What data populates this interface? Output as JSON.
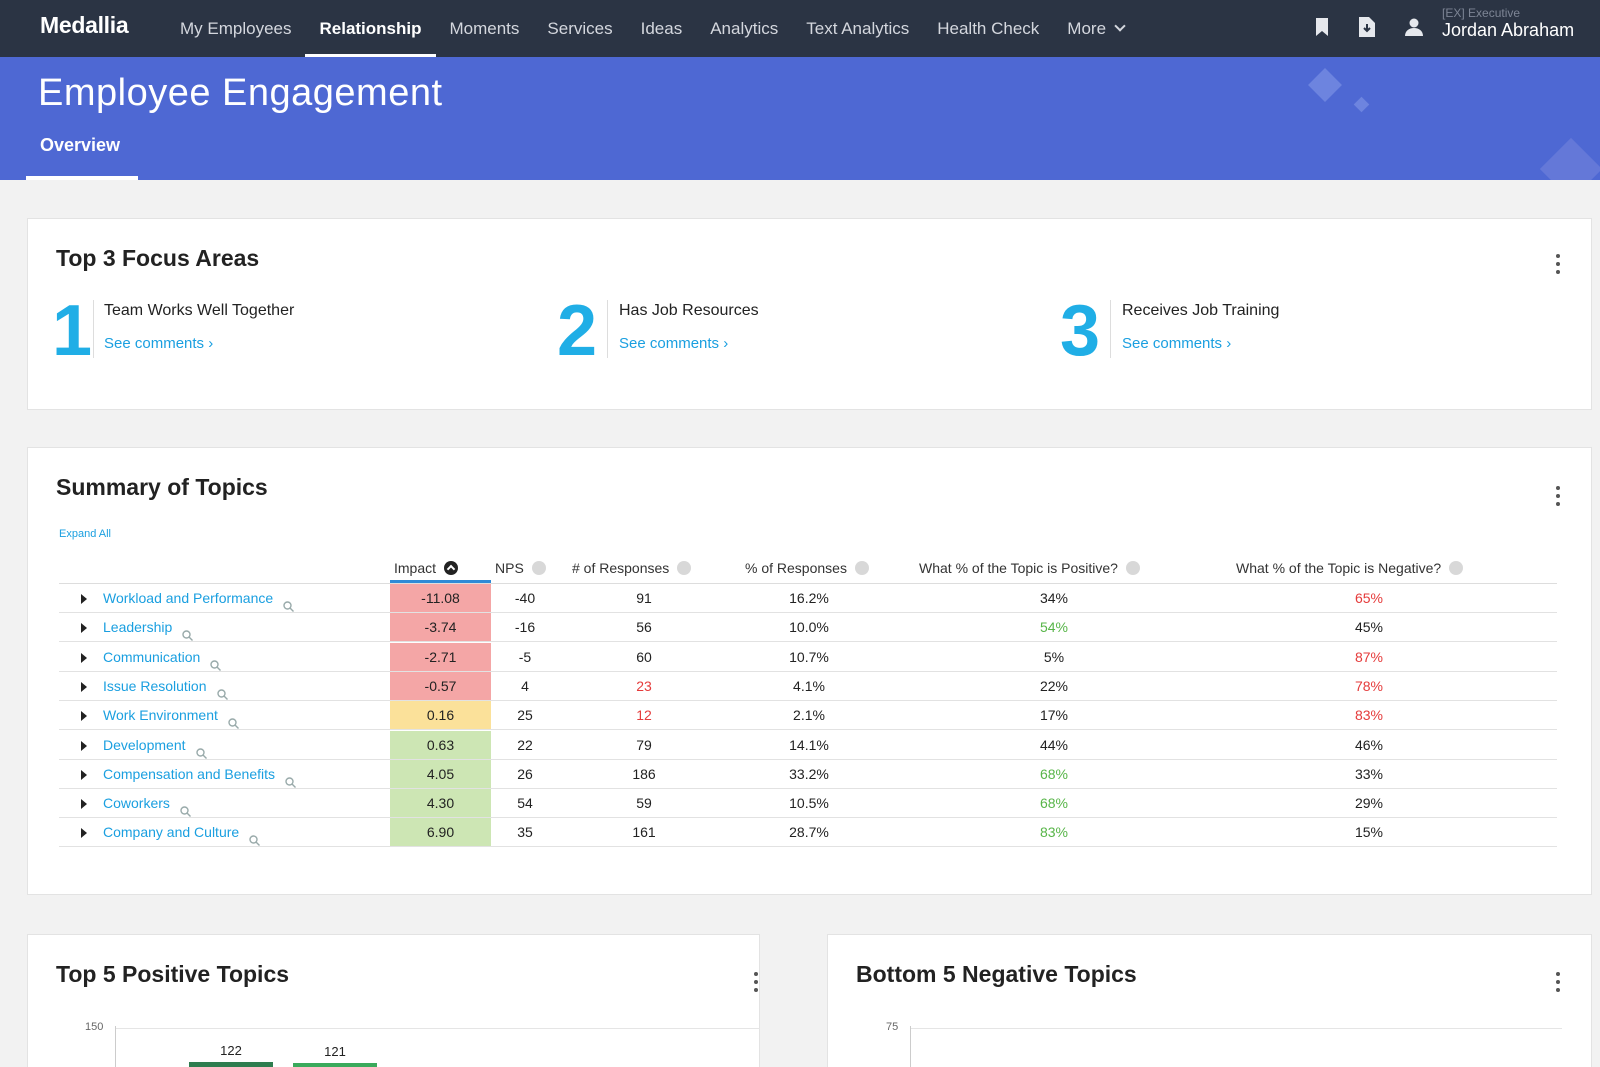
{
  "nav": {
    "logo": "Medallia",
    "items": [
      {
        "label": "My Employees",
        "active": false
      },
      {
        "label": "Relationship",
        "active": true
      },
      {
        "label": "Moments",
        "active": false
      },
      {
        "label": "Services",
        "active": false
      },
      {
        "label": "Ideas",
        "active": false
      },
      {
        "label": "Analytics",
        "active": false
      },
      {
        "label": "Text Analytics",
        "active": false
      },
      {
        "label": "Health Check",
        "active": false
      },
      {
        "label": "More",
        "active": false
      }
    ],
    "user_role": "[EX] Executive",
    "user_name": "Jordan Abraham",
    "icons": [
      "bookmark-icon",
      "export-icon",
      "user-icon"
    ]
  },
  "banner": {
    "title": "Employee Engagement",
    "tab": "Overview"
  },
  "focus": {
    "title": "Top 3 Focus Areas",
    "items": [
      {
        "num": "1",
        "label": "Team Works Well Together",
        "link": "See comments ›"
      },
      {
        "num": "2",
        "label": "Has Job Resources",
        "link": "See comments ›"
      },
      {
        "num": "3",
        "label": "Receives Job Training",
        "link": "See comments ›"
      }
    ]
  },
  "summary": {
    "title": "Summary of Topics",
    "expand_all": "Expand All",
    "columns": [
      "Impact",
      "NPS",
      "# of Responses",
      "% of Responses",
      "What % of the Topic is Positive?",
      "What % of the Topic is Negative?"
    ],
    "rows": [
      {
        "topic": "Workload and Performance",
        "impact": "-11.08",
        "impact_color": "#f4a6a6",
        "nps": "-40",
        "responses": "91",
        "responses_flag": "",
        "pct": "16.2%",
        "pos": "34%",
        "pos_flag": "",
        "neg": "65%",
        "neg_flag": "red"
      },
      {
        "topic": "Leadership",
        "impact": "-3.74",
        "impact_color": "#f4a6a6",
        "nps": "-16",
        "responses": "56",
        "responses_flag": "",
        "pct": "10.0%",
        "pos": "54%",
        "pos_flag": "green",
        "neg": "45%",
        "neg_flag": ""
      },
      {
        "topic": "Communication",
        "impact": "-2.71",
        "impact_color": "#f4a6a6",
        "nps": "-5",
        "responses": "60",
        "responses_flag": "",
        "pct": "10.7%",
        "pos": "5%",
        "pos_flag": "",
        "neg": "87%",
        "neg_flag": "red"
      },
      {
        "topic": "Issue Resolution",
        "impact": "-0.57",
        "impact_color": "#f4a6a6",
        "nps": "4",
        "responses": "23",
        "responses_flag": "red",
        "pct": "4.1%",
        "pos": "22%",
        "pos_flag": "",
        "neg": "78%",
        "neg_flag": "red"
      },
      {
        "topic": "Work Environment",
        "impact": "0.16",
        "impact_color": "#fbe19a",
        "nps": "25",
        "responses": "12",
        "responses_flag": "red",
        "pct": "2.1%",
        "pos": "17%",
        "pos_flag": "",
        "neg": "83%",
        "neg_flag": "red"
      },
      {
        "topic": "Development",
        "impact": "0.63",
        "impact_color": "#cde6b4",
        "nps": "22",
        "responses": "79",
        "responses_flag": "",
        "pct": "14.1%",
        "pos": "44%",
        "pos_flag": "",
        "neg": "46%",
        "neg_flag": ""
      },
      {
        "topic": "Compensation and Benefits",
        "impact": "4.05",
        "impact_color": "#cde6b4",
        "nps": "26",
        "responses": "186",
        "responses_flag": "",
        "pct": "33.2%",
        "pos": "68%",
        "pos_flag": "green",
        "neg": "33%",
        "neg_flag": ""
      },
      {
        "topic": "Coworkers",
        "impact": "4.30",
        "impact_color": "#cde6b4",
        "nps": "54",
        "responses": "59",
        "responses_flag": "",
        "pct": "10.5%",
        "pos": "68%",
        "pos_flag": "green",
        "neg": "29%",
        "neg_flag": ""
      },
      {
        "topic": "Company and Culture",
        "impact": "6.90",
        "impact_color": "#cde6b4",
        "nps": "35",
        "responses": "161",
        "responses_flag": "",
        "pct": "28.7%",
        "pos": "83%",
        "pos_flag": "green",
        "neg": "15%",
        "neg_flag": ""
      }
    ]
  },
  "positive": {
    "title": "Top 5 Positive Topics",
    "axis_max": "150"
  },
  "negative": {
    "title": "Bottom 5 Negative Topics",
    "axis_max": "75"
  },
  "chart_data": [
    {
      "type": "bar",
      "title": "Top 5 Positive Topics",
      "ylim": [
        0,
        150
      ],
      "values": [
        122,
        121
      ],
      "value_labels": [
        "122",
        "121"
      ],
      "colors": [
        "#2e7d4f",
        "#3aaa5c"
      ]
    },
    {
      "type": "bar",
      "title": "Bottom 5 Negative Topics",
      "ylim": [
        0,
        75
      ],
      "values": []
    }
  ],
  "colors": {
    "nav_bg": "#2b3444",
    "banner_bg": "#4e68d3",
    "accent": "#20aee6",
    "link": "#1a9fe0",
    "negative": "#e53b3b",
    "positive": "#57b548"
  }
}
